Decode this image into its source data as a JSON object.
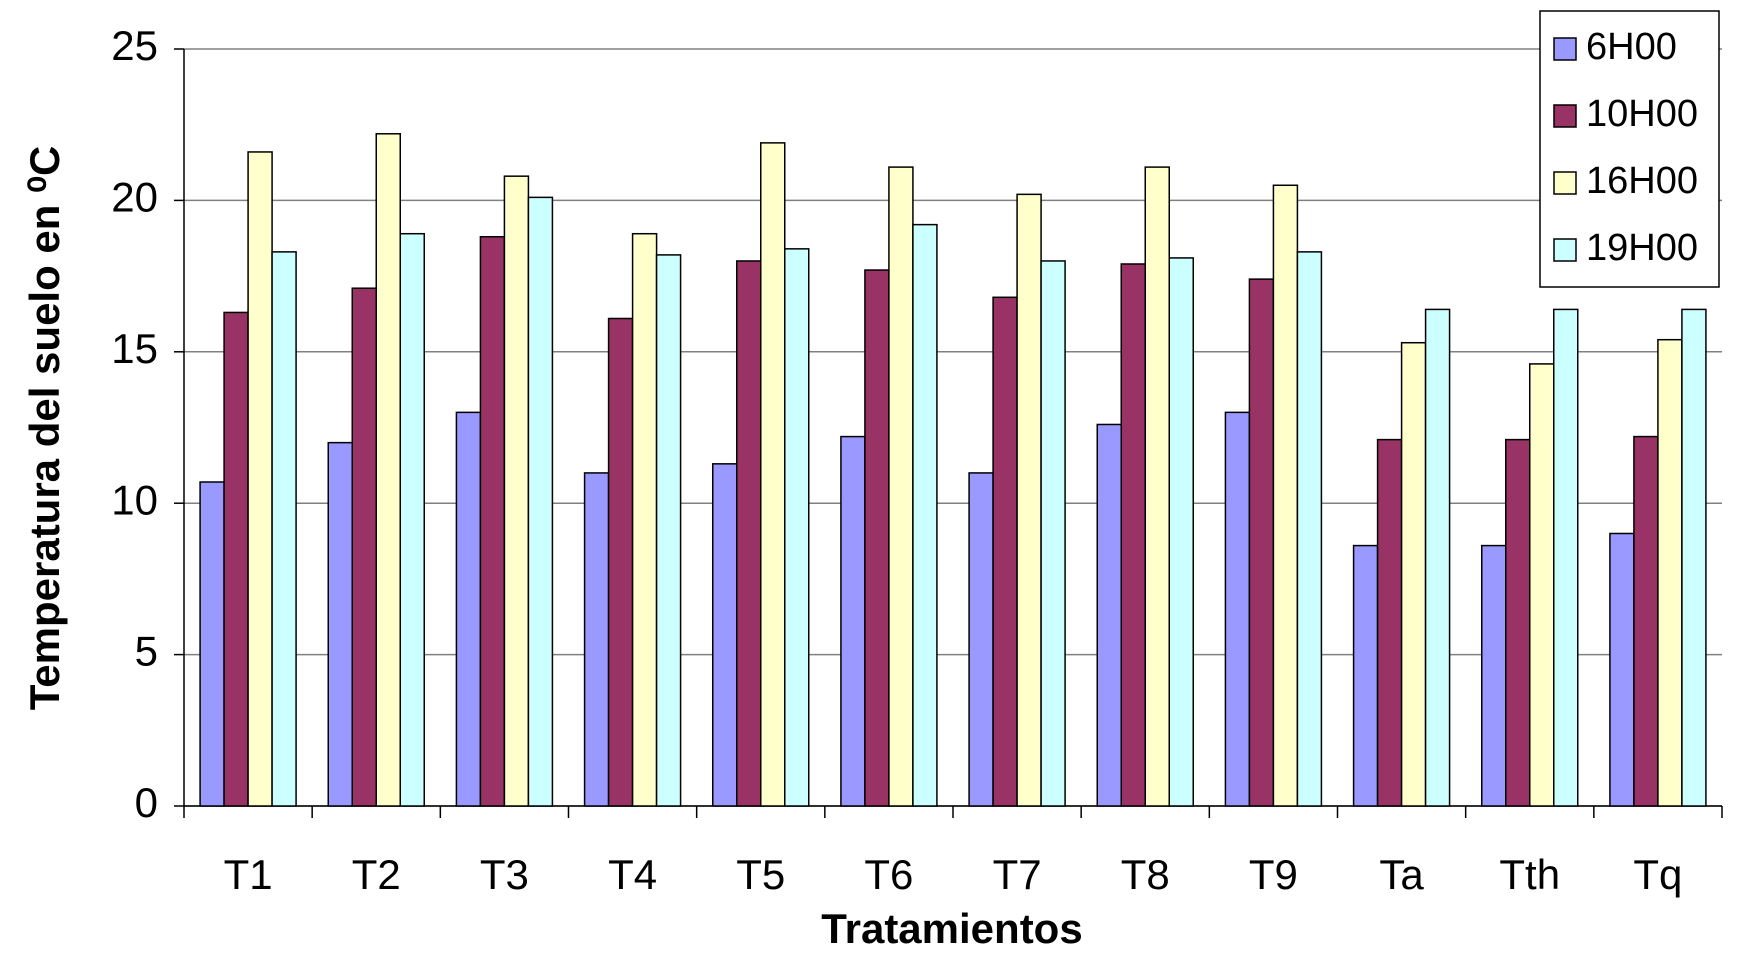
{
  "chart_data": {
    "type": "bar",
    "x_label": "Tratamientos",
    "y_label": "Temperatura del suelo en ⁰C",
    "categories": [
      "T1",
      "T2",
      "T3",
      "T4",
      "T5",
      "T6",
      "T7",
      "T8",
      "T9",
      "Ta",
      "Tth",
      "Tq"
    ],
    "series": [
      {
        "name": "6H00",
        "color": "#9999ff",
        "values": [
          10.7,
          12.0,
          13.0,
          11.0,
          11.3,
          12.2,
          11.0,
          12.6,
          13.0,
          8.6,
          8.6,
          9.0
        ]
      },
      {
        "name": "10H00",
        "color": "#993366",
        "values": [
          16.3,
          17.1,
          18.8,
          16.1,
          18.0,
          17.7,
          16.8,
          17.9,
          17.4,
          12.1,
          12.1,
          12.2
        ]
      },
      {
        "name": "16H00",
        "color": "#ffffcc",
        "values": [
          21.6,
          22.2,
          20.8,
          18.9,
          21.9,
          21.1,
          20.2,
          21.1,
          20.5,
          15.3,
          14.6,
          15.4
        ]
      },
      {
        "name": "19H00",
        "color": "#ccffff",
        "values": [
          18.3,
          18.9,
          20.1,
          18.2,
          18.4,
          19.2,
          18.0,
          18.1,
          18.3,
          16.4,
          16.4,
          16.4
        ]
      }
    ],
    "ylim": [
      0,
      25
    ],
    "yticks": [
      0,
      5,
      10,
      15,
      20,
      25
    ],
    "grid": true,
    "legend": "top-right"
  }
}
